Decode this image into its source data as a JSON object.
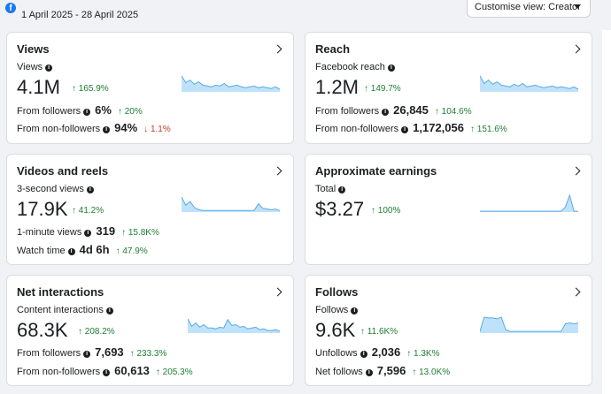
{
  "header": {
    "logo_letter": "f",
    "date_range": "1 April 2025 - 28 April 2025",
    "view_select": "Customise view: Creator"
  },
  "cards": {
    "views": {
      "title": "Views",
      "subtitle": "Views",
      "value": "4.1M",
      "change": "↑ 165.9%",
      "rows": [
        {
          "label": "From followers",
          "value": "6%",
          "change": "↑ 20%"
        },
        {
          "label": "From non-followers",
          "value": "94%",
          "change": "↓ 1.1%"
        }
      ]
    },
    "reach": {
      "title": "Reach",
      "subtitle": "Facebook reach",
      "value": "1.2M",
      "change": "↑ 149.7%",
      "rows": [
        {
          "label": "From followers",
          "value": "26,845",
          "change": "↑ 104.6%"
        },
        {
          "label": "From non-followers",
          "value": "1,172,056",
          "change": "↑ 151.6%"
        }
      ]
    },
    "videos": {
      "title": "Videos and reels",
      "subtitle": "3-second views",
      "value": "17.9K",
      "change": "↑ 41.2%",
      "rows": [
        {
          "label": "1-minute views",
          "value": "319",
          "change": "↑ 15.8K%"
        },
        {
          "label": "Watch time",
          "value": "4d 6h",
          "change": "↑ 47.9%"
        }
      ]
    },
    "earnings": {
      "title": "Approximate earnings",
      "subtitle": "Total",
      "value": "$3.27",
      "change": "↑ 100%"
    },
    "interactions": {
      "title": "Net interactions",
      "subtitle": "Content interactions",
      "value": "68.3K",
      "change": "↑ 208.2%",
      "rows": [
        {
          "label": "From followers",
          "value": "7,693",
          "change": "↑ 233.3%"
        },
        {
          "label": "From non-followers",
          "value": "60,613",
          "change": "↑ 205.3%"
        }
      ]
    },
    "follows": {
      "title": "Follows",
      "subtitle": "Follows",
      "value": "9.6K",
      "change": "↑ 11.6K%",
      "rows": [
        {
          "label": "Unfollows",
          "value": "2,036",
          "change": "↑ 1.3K%"
        },
        {
          "label": "Net follows",
          "value": "7,596",
          "change": "↑ 13.0K%"
        }
      ]
    }
  },
  "sparklines": {
    "views": [
      0.95,
      0.55,
      0.7,
      0.45,
      0.6,
      0.4,
      0.35,
      0.3,
      0.4,
      0.35,
      0.5,
      0.3,
      0.35,
      0.4,
      0.3,
      0.25,
      0.3,
      0.35,
      0.25,
      0.3,
      0.25,
      0.2,
      0.3,
      0.15
    ],
    "reach": [
      0.95,
      0.5,
      0.7,
      0.45,
      0.6,
      0.4,
      0.35,
      0.3,
      0.45,
      0.35,
      0.5,
      0.3,
      0.35,
      0.4,
      0.3,
      0.25,
      0.3,
      0.35,
      0.25,
      0.3,
      0.25,
      0.2,
      0.3,
      0.15
    ],
    "videos": [
      1.0,
      0.45,
      0.7,
      0.3,
      0.15,
      0.1,
      0.1,
      0.1,
      0.1,
      0.1,
      0.1,
      0.1,
      0.1,
      0.1,
      0.1,
      0.1,
      0.1,
      0.1,
      0.55,
      0.25,
      0.2,
      0.15,
      0.2,
      0.1
    ],
    "earnings": [
      0.05,
      0.05,
      0.05,
      0.05,
      0.05,
      0.05,
      0.05,
      0.05,
      0.05,
      0.05,
      0.05,
      0.05,
      0.05,
      0.05,
      0.05,
      0.05,
      0.05,
      0.05,
      0.05,
      0.05,
      0.3,
      1.0,
      0.05,
      0.05
    ],
    "interactions": [
      0.85,
      0.4,
      0.6,
      0.35,
      0.5,
      0.3,
      0.3,
      0.25,
      0.35,
      0.3,
      0.8,
      0.45,
      0.5,
      0.35,
      0.4,
      0.25,
      0.3,
      0.35,
      0.2,
      0.25,
      0.15,
      0.15,
      0.2,
      0.1
    ],
    "follows": [
      0.1,
      0.95,
      0.9,
      0.9,
      0.85,
      0.95,
      0.2,
      0.1,
      0.1,
      0.1,
      0.1,
      0.1,
      0.1,
      0.1,
      0.1,
      0.1,
      0.1,
      0.1,
      0.1,
      0.1,
      0.55,
      0.6,
      0.55,
      0.6
    ]
  },
  "colors": {
    "spark_line": "#5aa9e6",
    "spark_fill": "#bfe2fb",
    "positive": "#1e7e34",
    "negative": "#c0392b"
  }
}
